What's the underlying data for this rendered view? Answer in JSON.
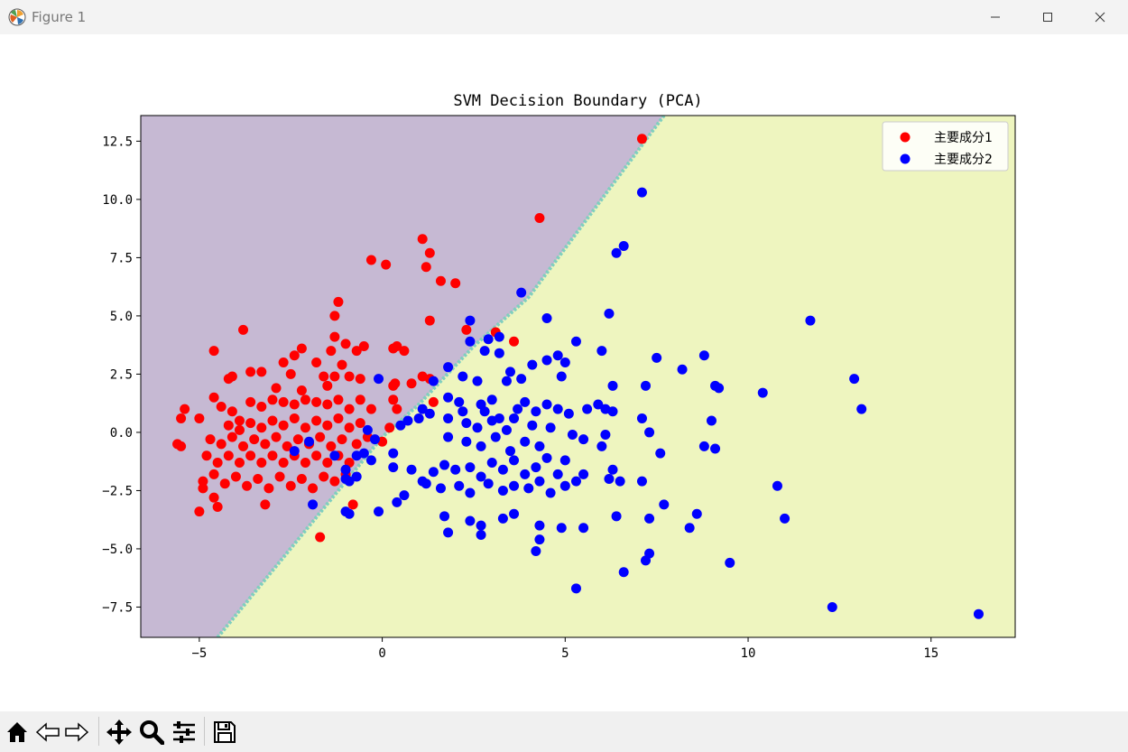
{
  "window": {
    "title": "Figure 1"
  },
  "toolbar": {
    "buttons": [
      "home-icon",
      "back-icon",
      "forward-icon",
      "pan-icon",
      "zoom-icon",
      "configure-subplots-icon",
      "save-icon"
    ]
  },
  "chart_data": {
    "type": "scatter",
    "title": "SVM Decision Boundary (PCA)",
    "xlabel": "",
    "ylabel": "",
    "xlim": [
      -6.6,
      17.3
    ],
    "ylim": [
      -8.8,
      13.6
    ],
    "xticks": [
      "−5",
      "0",
      "5",
      "10",
      "15"
    ],
    "xtick_values": [
      -5,
      0,
      5,
      10,
      15
    ],
    "yticks": [
      "−7.5",
      "−5.0",
      "−2.5",
      "0.0",
      "2.5",
      "5.0",
      "7.5",
      "10.0",
      "12.5"
    ],
    "ytick_values": [
      -7.5,
      -5.0,
      -2.5,
      0.0,
      2.5,
      5.0,
      7.5,
      10.0,
      12.5
    ],
    "grid": false,
    "legend_position": "top-right",
    "decision_boundary": {
      "line_points": [
        [
          -4.5,
          -8.8
        ],
        [
          0.0,
          -0.2
        ],
        [
          1.0,
          1.2
        ],
        [
          2.5,
          3.7
        ],
        [
          4.0,
          5.8
        ],
        [
          7.7,
          13.6
        ]
      ],
      "region_colors": {
        "class_a": "#c6b9d3",
        "class_b": "#eef5bf",
        "edge": "#7fcfbe"
      }
    },
    "series": [
      {
        "name": "主要成分1",
        "color": "#ff0000",
        "points": [
          [
            7.1,
            12.6
          ],
          [
            4.3,
            9.2
          ],
          [
            1.1,
            8.3
          ],
          [
            1.3,
            7.7
          ],
          [
            -0.3,
            7.4
          ],
          [
            0.1,
            7.2
          ],
          [
            1.2,
            7.1
          ],
          [
            1.6,
            6.5
          ],
          [
            2.0,
            6.4
          ],
          [
            -1.2,
            5.6
          ],
          [
            -1.3,
            5.0
          ],
          [
            1.3,
            4.8
          ],
          [
            -3.8,
            4.4
          ],
          [
            2.3,
            4.4
          ],
          [
            3.1,
            4.3
          ],
          [
            3.6,
            3.9
          ],
          [
            -1.3,
            4.1
          ],
          [
            -1.0,
            3.8
          ],
          [
            -0.5,
            3.7
          ],
          [
            -0.7,
            3.5
          ],
          [
            0.3,
            3.6
          ],
          [
            0.4,
            3.7
          ],
          [
            0.6,
            3.5
          ],
          [
            -1.4,
            3.5
          ],
          [
            -4.6,
            3.5
          ],
          [
            -2.4,
            3.3
          ],
          [
            -2.2,
            3.6
          ],
          [
            -2.7,
            3.0
          ],
          [
            -1.8,
            3.0
          ],
          [
            -1.1,
            2.9
          ],
          [
            -3.6,
            2.6
          ],
          [
            -3.3,
            2.6
          ],
          [
            -2.5,
            2.5
          ],
          [
            -1.6,
            2.4
          ],
          [
            -1.3,
            2.4
          ],
          [
            -0.9,
            2.4
          ],
          [
            -0.6,
            2.3
          ],
          [
            1.1,
            2.4
          ],
          [
            1.3,
            2.3
          ],
          [
            0.8,
            2.1
          ],
          [
            -4.2,
            2.3
          ],
          [
            -4.1,
            2.4
          ],
          [
            0.3,
            2.0
          ],
          [
            0.35,
            2.1
          ],
          [
            -2.9,
            1.9
          ],
          [
            -2.2,
            1.8
          ],
          [
            -1.5,
            2.0
          ],
          [
            -5.4,
            1.0
          ],
          [
            -4.6,
            1.5
          ],
          [
            -4.4,
            1.1
          ],
          [
            -4.1,
            0.9
          ],
          [
            -3.9,
            0.5
          ],
          [
            -3.6,
            1.3
          ],
          [
            -3.3,
            1.1
          ],
          [
            -3.0,
            1.4
          ],
          [
            -2.7,
            1.3
          ],
          [
            -2.4,
            1.2
          ],
          [
            -2.1,
            1.4
          ],
          [
            -1.8,
            1.3
          ],
          [
            -1.5,
            1.2
          ],
          [
            -1.2,
            1.4
          ],
          [
            -0.9,
            1.0
          ],
          [
            -0.6,
            1.4
          ],
          [
            -0.3,
            1.0
          ],
          [
            0.3,
            1.4
          ],
          [
            0.4,
            1.0
          ],
          [
            1.4,
            1.3
          ],
          [
            -5.5,
            0.6
          ],
          [
            -5.0,
            0.6
          ],
          [
            -4.2,
            0.3
          ],
          [
            -3.9,
            0.1
          ],
          [
            -3.6,
            0.4
          ],
          [
            -3.3,
            0.2
          ],
          [
            -3.0,
            0.5
          ],
          [
            -2.7,
            0.3
          ],
          [
            -2.4,
            0.6
          ],
          [
            -2.1,
            0.2
          ],
          [
            -1.8,
            0.5
          ],
          [
            -1.5,
            0.3
          ],
          [
            -1.2,
            0.6
          ],
          [
            -0.9,
            0.2
          ],
          [
            -0.6,
            0.4
          ],
          [
            0.2,
            0.2
          ],
          [
            -5.6,
            -0.5
          ],
          [
            -5.5,
            -0.6
          ],
          [
            -4.7,
            -0.3
          ],
          [
            -4.4,
            -0.5
          ],
          [
            -4.1,
            -0.2
          ],
          [
            -3.8,
            -0.6
          ],
          [
            -3.5,
            -0.3
          ],
          [
            -3.2,
            -0.5
          ],
          [
            -2.9,
            -0.2
          ],
          [
            -2.6,
            -0.6
          ],
          [
            -2.3,
            -0.3
          ],
          [
            -2.0,
            -0.5
          ],
          [
            -1.7,
            -0.2
          ],
          [
            -1.4,
            -0.6
          ],
          [
            -1.1,
            -0.3
          ],
          [
            -0.7,
            -0.5
          ],
          [
            -0.4,
            -0.2
          ],
          [
            0.0,
            -0.4
          ],
          [
            -4.8,
            -1.0
          ],
          [
            -4.5,
            -1.3
          ],
          [
            -4.2,
            -1.0
          ],
          [
            -3.9,
            -1.3
          ],
          [
            -3.6,
            -1.0
          ],
          [
            -3.3,
            -1.3
          ],
          [
            -3.0,
            -1.0
          ],
          [
            -2.7,
            -1.3
          ],
          [
            -2.4,
            -1.0
          ],
          [
            -2.1,
            -1.3
          ],
          [
            -1.8,
            -1.0
          ],
          [
            -1.5,
            -1.3
          ],
          [
            -1.2,
            -1.0
          ],
          [
            -0.9,
            -1.3
          ],
          [
            -4.9,
            -2.1
          ],
          [
            -4.9,
            -2.4
          ],
          [
            -4.6,
            -1.8
          ],
          [
            -4.3,
            -2.2
          ],
          [
            -4.0,
            -1.9
          ],
          [
            -3.7,
            -2.3
          ],
          [
            -3.4,
            -2.0
          ],
          [
            -3.1,
            -2.4
          ],
          [
            -2.8,
            -1.9
          ],
          [
            -2.5,
            -2.3
          ],
          [
            -2.2,
            -2.0
          ],
          [
            -1.9,
            -2.4
          ],
          [
            -1.6,
            -1.9
          ],
          [
            -1.3,
            -2.1
          ],
          [
            -1.0,
            -1.8
          ],
          [
            -4.6,
            -2.8
          ],
          [
            -4.5,
            -3.2
          ],
          [
            -3.2,
            -3.1
          ],
          [
            -5.0,
            -3.4
          ],
          [
            -0.8,
            -3.1
          ],
          [
            -1.7,
            -4.5
          ]
        ]
      },
      {
        "name": "主要成分2",
        "color": "#0000ff",
        "points": [
          [
            7.1,
            10.3
          ],
          [
            6.6,
            8.0
          ],
          [
            6.4,
            7.7
          ],
          [
            3.8,
            6.0
          ],
          [
            6.2,
            5.1
          ],
          [
            4.5,
            4.9
          ],
          [
            2.4,
            4.8
          ],
          [
            11.7,
            4.8
          ],
          [
            2.4,
            3.9
          ],
          [
            2.9,
            4.0
          ],
          [
            3.2,
            4.1
          ],
          [
            5.3,
            3.9
          ],
          [
            6.0,
            3.5
          ],
          [
            7.5,
            3.2
          ],
          [
            8.8,
            3.3
          ],
          [
            2.8,
            3.5
          ],
          [
            3.2,
            3.4
          ],
          [
            4.1,
            2.9
          ],
          [
            4.5,
            3.1
          ],
          [
            4.8,
            3.3
          ],
          [
            5.0,
            3.0
          ],
          [
            4.9,
            2.4
          ],
          [
            1.8,
            2.8
          ],
          [
            2.2,
            2.4
          ],
          [
            1.4,
            2.2
          ],
          [
            2.6,
            2.2
          ],
          [
            3.5,
            2.6
          ],
          [
            3.8,
            2.3
          ],
          [
            3.4,
            2.2
          ],
          [
            6.3,
            2.0
          ],
          [
            7.2,
            2.0
          ],
          [
            8.2,
            2.7
          ],
          [
            9.1,
            2.0
          ],
          [
            9.2,
            1.9
          ],
          [
            10.4,
            1.7
          ],
          [
            12.9,
            2.3
          ],
          [
            13.1,
            1.0
          ],
          [
            1.1,
            1.0
          ],
          [
            1.3,
            0.8
          ],
          [
            1.0,
            0.6
          ],
          [
            0.7,
            0.5
          ],
          [
            0.5,
            0.3
          ],
          [
            1.8,
            1.5
          ],
          [
            2.1,
            1.3
          ],
          [
            2.2,
            0.9
          ],
          [
            2.7,
            1.2
          ],
          [
            3.0,
            1.4
          ],
          [
            2.8,
            0.9
          ],
          [
            3.2,
            0.6
          ],
          [
            3.7,
            1.0
          ],
          [
            3.9,
            1.3
          ],
          [
            4.2,
            0.9
          ],
          [
            4.5,
            1.2
          ],
          [
            4.8,
            1.0
          ],
          [
            5.1,
            0.8
          ],
          [
            5.6,
            1.0
          ],
          [
            6.1,
            1.0
          ],
          [
            6.3,
            0.9
          ],
          [
            5.9,
            1.2
          ],
          [
            1.8,
            0.6
          ],
          [
            2.3,
            0.4
          ],
          [
            2.6,
            0.2
          ],
          [
            3.0,
            0.5
          ],
          [
            3.4,
            0.1
          ],
          [
            3.6,
            0.6
          ],
          [
            4.1,
            0.3
          ],
          [
            4.6,
            0.2
          ],
          [
            7.1,
            0.6
          ],
          [
            7.3,
            0.0
          ],
          [
            9.0,
            0.5
          ],
          [
            1.8,
            -0.2
          ],
          [
            2.3,
            -0.4
          ],
          [
            2.7,
            -0.6
          ],
          [
            3.1,
            -0.2
          ],
          [
            3.5,
            -0.8
          ],
          [
            3.9,
            -0.4
          ],
          [
            4.3,
            -0.6
          ],
          [
            5.2,
            -0.1
          ],
          [
            5.5,
            -0.3
          ],
          [
            6.0,
            -0.6
          ],
          [
            6.1,
            -0.1
          ],
          [
            7.6,
            -0.9
          ],
          [
            8.8,
            -0.6
          ],
          [
            9.1,
            -0.7
          ],
          [
            -0.4,
            0.1
          ],
          [
            -0.2,
            -0.3
          ],
          [
            -0.5,
            -0.9
          ],
          [
            -0.3,
            -1.2
          ],
          [
            -0.7,
            -1.0
          ],
          [
            -0.1,
            2.3
          ],
          [
            0.3,
            -0.9
          ],
          [
            0.3,
            -1.5
          ],
          [
            0.8,
            -1.6
          ],
          [
            1.1,
            -2.1
          ],
          [
            1.4,
            -1.7
          ],
          [
            1.7,
            -1.4
          ],
          [
            2.0,
            -1.6
          ],
          [
            2.4,
            -1.5
          ],
          [
            2.7,
            -1.9
          ],
          [
            3.0,
            -1.3
          ],
          [
            3.3,
            -1.6
          ],
          [
            3.6,
            -1.2
          ],
          [
            3.9,
            -1.8
          ],
          [
            4.2,
            -1.5
          ],
          [
            4.5,
            -1.1
          ],
          [
            4.8,
            -1.8
          ],
          [
            5.0,
            -1.2
          ],
          [
            5.5,
            -1.8
          ],
          [
            6.3,
            -1.6
          ],
          [
            6.5,
            -2.1
          ],
          [
            1.2,
            -2.2
          ],
          [
            1.6,
            -2.4
          ],
          [
            2.1,
            -2.3
          ],
          [
            2.4,
            -2.6
          ],
          [
            2.9,
            -2.2
          ],
          [
            3.3,
            -2.5
          ],
          [
            3.6,
            -2.3
          ],
          [
            4.0,
            -2.4
          ],
          [
            4.3,
            -2.1
          ],
          [
            4.6,
            -2.6
          ],
          [
            5.0,
            -2.3
          ],
          [
            5.3,
            -2.1
          ],
          [
            6.2,
            -2.0
          ],
          [
            7.1,
            -2.1
          ],
          [
            10.8,
            -2.3
          ],
          [
            0.4,
            -3.0
          ],
          [
            0.6,
            -2.7
          ],
          [
            1.7,
            -3.6
          ],
          [
            2.4,
            -3.8
          ],
          [
            2.7,
            -4.0
          ],
          [
            3.3,
            -3.7
          ],
          [
            3.6,
            -3.5
          ],
          [
            4.3,
            -4.0
          ],
          [
            4.9,
            -4.1
          ],
          [
            5.5,
            -4.1
          ],
          [
            6.4,
            -3.6
          ],
          [
            7.3,
            -3.7
          ],
          [
            7.7,
            -3.1
          ],
          [
            8.4,
            -4.1
          ],
          [
            8.6,
            -3.5
          ],
          [
            11.0,
            -3.7
          ],
          [
            1.8,
            -4.3
          ],
          [
            2.7,
            -4.4
          ],
          [
            4.3,
            -4.6
          ],
          [
            4.2,
            -5.1
          ],
          [
            6.6,
            -6.0
          ],
          [
            7.3,
            -5.2
          ],
          [
            7.2,
            -5.5
          ],
          [
            9.5,
            -5.6
          ],
          [
            5.3,
            -6.7
          ],
          [
            12.3,
            -7.5
          ],
          [
            16.3,
            -7.8
          ],
          [
            -1.0,
            -3.4
          ],
          [
            -0.9,
            -3.5
          ],
          [
            -0.1,
            -3.4
          ],
          [
            -1.9,
            -3.1
          ],
          [
            -2.4,
            -0.8
          ],
          [
            -2.0,
            -0.4
          ],
          [
            -1.3,
            -1.0
          ],
          [
            -1.0,
            -1.6
          ],
          [
            -0.9,
            -2.1
          ],
          [
            -0.7,
            -1.9
          ],
          [
            -1.0,
            -2.0
          ]
        ]
      }
    ]
  }
}
